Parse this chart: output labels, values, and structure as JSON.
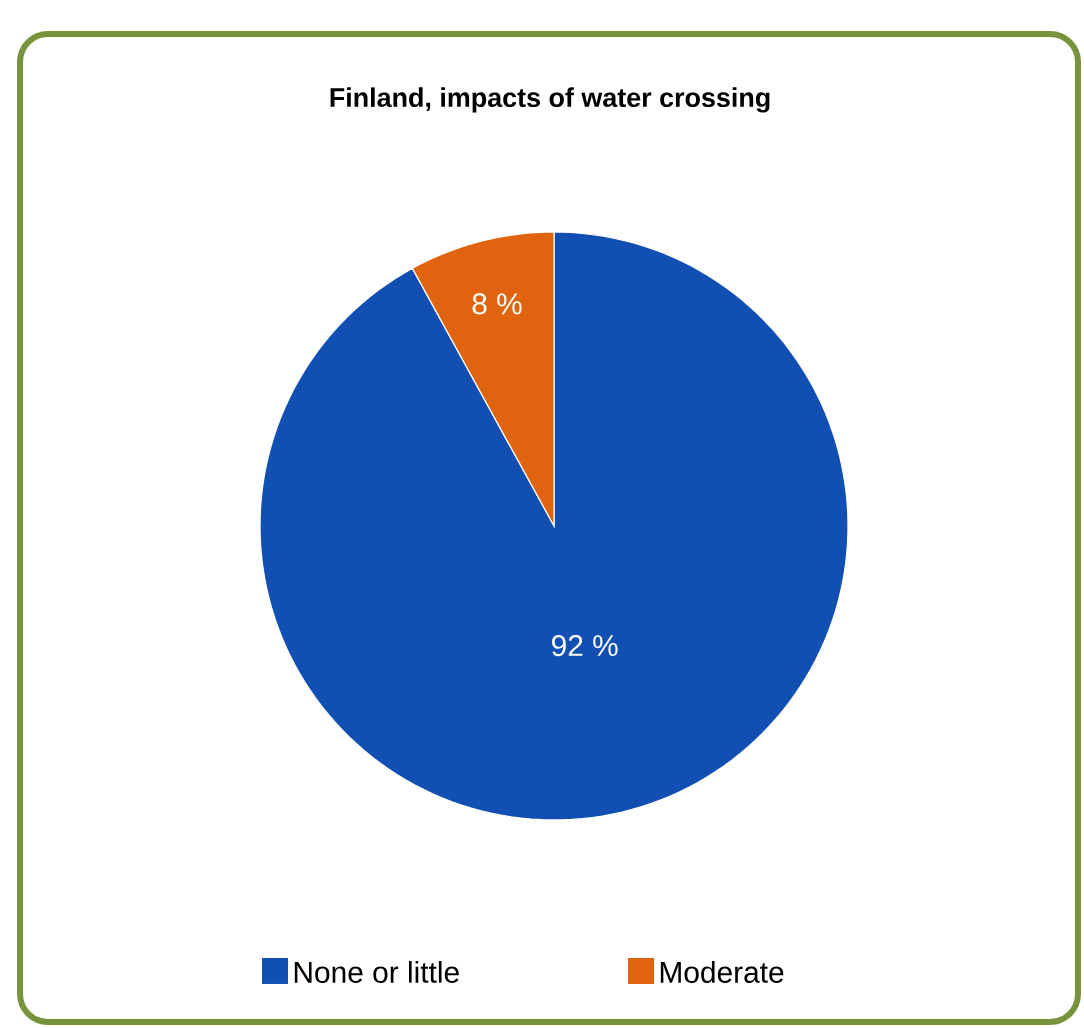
{
  "chart_data": {
    "type": "pie",
    "title": "Finland, impacts of water crossing",
    "categories": [
      "None or little",
      "Moderate"
    ],
    "values": [
      92,
      8
    ],
    "colors": [
      "#1150b2",
      "#e0640f"
    ],
    "value_labels": [
      "92 %",
      "8 %"
    ],
    "legend": "bottom"
  }
}
